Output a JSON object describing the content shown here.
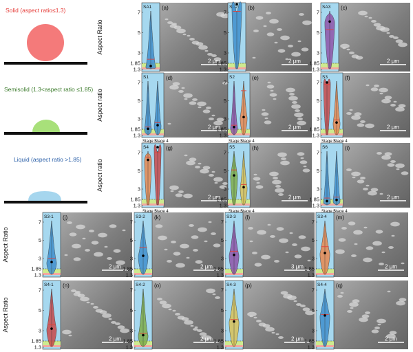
{
  "legend": [
    {
      "label": "Solid (aspect ratio≤1.3)",
      "color": "#e53935",
      "shape": "circle",
      "fill": "#f47a7a"
    },
    {
      "label": "Semisolid (1.3<aspect ratio ≤1.85)",
      "color": "#3a7a2a",
      "shape": "halfdome",
      "fill": "#a8e07a"
    },
    {
      "label": "Liquid (aspect ratio >1.85)",
      "color": "#2a5fa8",
      "shape": "flatdrop",
      "fill": "#a6d6ee"
    }
  ],
  "colors": {
    "panel_bg": "#a6d8ef",
    "band_red": "#f3a7a0",
    "band_green": "#cdea8f",
    "sem_bg": "#8c8c8c",
    "blue": "#3f8fcc",
    "purple": "#8e55a8",
    "orange": "#e8884f",
    "red": "#c94a4a",
    "green": "#7fae4a",
    "yellow": "#d9c257",
    "median": "#e0413a"
  },
  "axes": {
    "ylabels": [
      "Aspect Ratio",
      "Aspect ratio",
      "Aspect ratio",
      "Aspect Ratio",
      "Aspect Ratio"
    ],
    "yticks": [
      "7",
      "5",
      "3",
      "1.85",
      "1.3"
    ],
    "stage_labels": [
      "Stage 3",
      "Stage 4"
    ]
  },
  "rows": [
    {
      "panels": [
        {
          "title": "SA1",
          "letter": "(a)",
          "scale": "2 μm",
          "violins": [
            {
              "color": "blue",
              "mean": 1.6,
              "median": 2.3
            }
          ]
        },
        {
          "title": "SA2",
          "letter": "(b)",
          "scale": "2 μm",
          "violins": [
            {
              "color": "blue",
              "mean": 7.8,
              "median": 7.1
            }
          ]
        },
        {
          "title": "SA3",
          "letter": "(c)",
          "scale": "2 μm",
          "violins": [
            {
              "color": "purple",
              "mean": 6.1,
              "median": 5.3
            }
          ]
        }
      ]
    },
    {
      "panels": [
        {
          "title": "S1",
          "letter": "(d)",
          "scale": "2 μm",
          "violins": [
            {
              "color": "blue",
              "mean": 1.9,
              "median": 2.1
            },
            {
              "color": "blue",
              "mean": 2.3,
              "median": 2.6
            }
          ]
        },
        {
          "title": "S2",
          "letter": "(e)",
          "scale": "2 μm",
          "violins": [
            {
              "color": "purple",
              "mean": 2.1,
              "median": 2.3
            },
            {
              "color": "orange",
              "mean": 3.2,
              "median": 6.1
            }
          ]
        },
        {
          "title": "S3",
          "letter": "(f)",
          "scale": "2 μm",
          "violins": [
            {
              "color": "red",
              "mean": 7.0,
              "median": 6.8
            },
            {
              "color": "orange",
              "mean": 2.6,
              "median": 2.9
            }
          ]
        }
      ]
    },
    {
      "panels": [
        {
          "title": "S4",
          "letter": "(g)",
          "scale": "2 μm",
          "violins": [
            {
              "color": "orange",
              "mean": 6.2,
              "median": 6.5
            },
            {
              "color": "red",
              "mean": 7.6,
              "median": 7.0
            }
          ]
        },
        {
          "title": "S5",
          "letter": "(h)",
          "scale": "2 μm",
          "violins": [
            {
              "color": "green",
              "mean": 4.5,
              "median": 5.1
            },
            {
              "color": "yellow",
              "mean": 3.2,
              "median": 3.5
            }
          ]
        },
        {
          "title": "S6",
          "letter": "(i)",
          "scale": "2 μm",
          "violins": [
            {
              "color": "blue",
              "mean": 1.7,
              "median": 2.0
            },
            {
              "color": "blue",
              "mean": 1.8,
              "median": 2.1
            }
          ]
        }
      ]
    },
    {
      "panels": [
        {
          "title": "S3-1",
          "letter": "(j)",
          "scale": "2 μm",
          "violins": [
            {
              "color": "blue",
              "mean": 2.6,
              "median": 3.0
            }
          ]
        },
        {
          "title": "S3-2",
          "letter": "(k)",
          "scale": "2 μm",
          "violins": [
            {
              "color": "blue",
              "mean": 3.3,
              "median": 4.2
            }
          ]
        },
        {
          "title": "S3-3",
          "letter": "(l)",
          "scale": "3 μm",
          "violins": [
            {
              "color": "purple",
              "mean": 3.4,
              "median": 3.8
            }
          ]
        },
        {
          "title": "S3-4",
          "letter": "(m)",
          "scale": "2 μm",
          "violins": [
            {
              "color": "orange",
              "mean": 3.6,
              "median": 4.3
            }
          ]
        }
      ]
    },
    {
      "panels": [
        {
          "title": "S4-1",
          "letter": "(n)",
          "scale": "2 μm",
          "violins": [
            {
              "color": "red",
              "mean": 3.2,
              "median": 3.6
            }
          ]
        },
        {
          "title": "S4-2",
          "letter": "(o)",
          "scale": "2 μm",
          "violins": [
            {
              "color": "green",
              "mean": 2.5,
              "median": 2.7
            }
          ]
        },
        {
          "title": "S4-3",
          "letter": "(p)",
          "scale": "2 μm",
          "violins": [
            {
              "color": "yellow",
              "mean": 3.9,
              "median": 4.1
            }
          ]
        },
        {
          "title": "S4-4",
          "letter": "(q)",
          "scale": "2 μm",
          "violins": [
            {
              "color": "blue",
              "mean": 4.5,
              "median": 4.6
            }
          ]
        }
      ]
    }
  ]
}
